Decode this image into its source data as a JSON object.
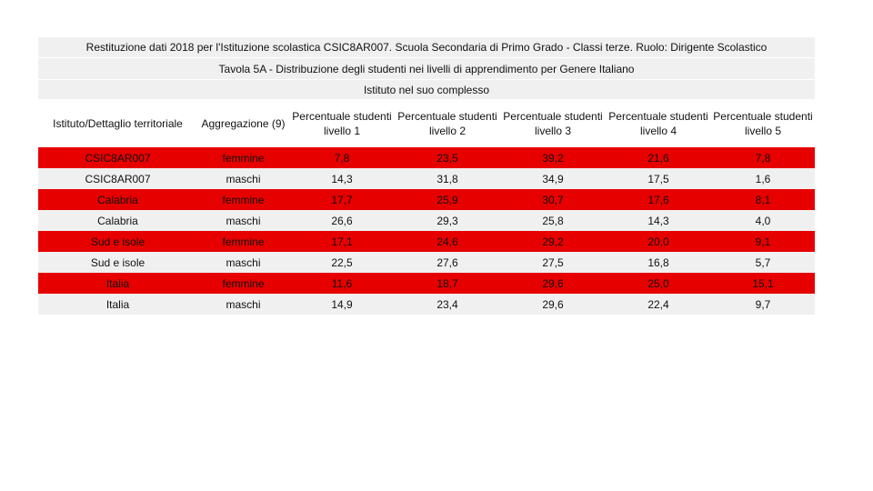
{
  "header": {
    "title": "Restituzione dati 2018 per l'Istituzione scolastica CSIC8AR007. Scuola Secondaria di Primo Grado - Classi terze. Ruolo: Dirigente Scolastico",
    "subtitle": "Tavola 5A - Distribuzione degli studenti nei livelli di apprendimento per Genere Italiano",
    "group": "Istituto nel suo complesso"
  },
  "table": {
    "columns": [
      "Istituto/Dettaglio territoriale",
      "Aggregazione (9)",
      "Percentuale studenti livello 1",
      "Percentuale studenti livello 2",
      "Percentuale studenti livello 3",
      "Percentuale studenti livello 4",
      "Percentuale studenti livello 5"
    ],
    "rows": [
      [
        "CSIC8AR007",
        "femmine",
        "7,8",
        "23,5",
        "39,2",
        "21,6",
        "7,8"
      ],
      [
        "CSIC8AR007",
        "maschi",
        "14,3",
        "31,8",
        "34,9",
        "17,5",
        "1,6"
      ],
      [
        "Calabria",
        "femmine",
        "17,7",
        "25,9",
        "30,7",
        "17,6",
        "8,1"
      ],
      [
        "Calabria",
        "maschi",
        "26,6",
        "29,3",
        "25,8",
        "14,3",
        "4,0"
      ],
      [
        "Sud e isole",
        "femmine",
        "17,1",
        "24,6",
        "29,2",
        "20,0",
        "9,1"
      ],
      [
        "Sud e isole",
        "maschi",
        "22,5",
        "27,6",
        "27,5",
        "16,8",
        "5,7"
      ],
      [
        "Italia",
        "femmine",
        "11,6",
        "18,7",
        "29,6",
        "25,0",
        "15,1"
      ],
      [
        "Italia",
        "maschi",
        "14,9",
        "23,4",
        "29,6",
        "22,4",
        "9,7"
      ]
    ]
  }
}
